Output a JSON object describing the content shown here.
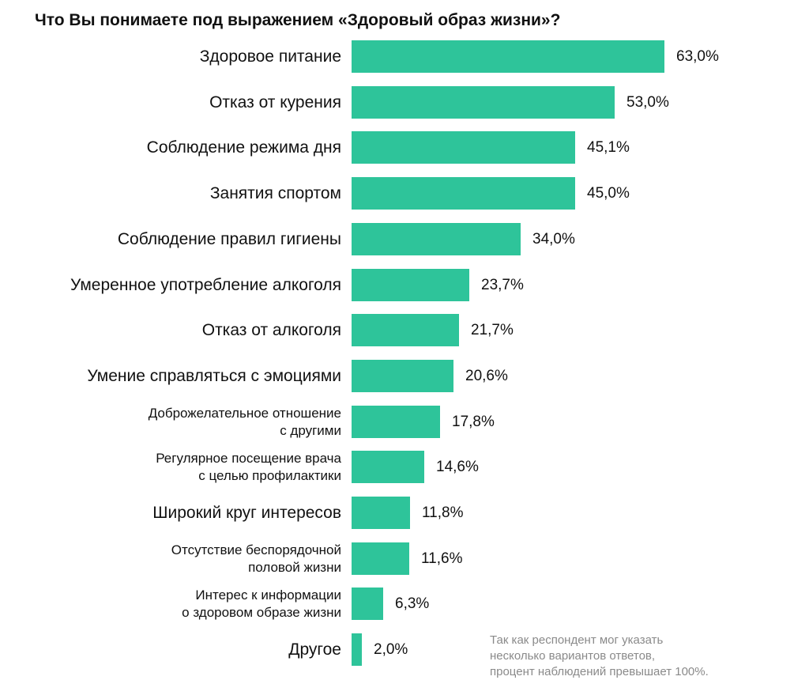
{
  "chart_data": {
    "type": "bar",
    "orientation": "horizontal",
    "title": "Что Вы понимаете под выражением «Здоровый образ жизни»?",
    "categories": [
      [
        "Здоровое питание"
      ],
      [
        "Отказ от курения"
      ],
      [
        "Соблюдение режима дня"
      ],
      [
        "Занятия спортом"
      ],
      [
        "Соблюдение правил гигиены"
      ],
      [
        "Умеренное употребление алкоголя"
      ],
      [
        "Отказ от алкоголя"
      ],
      [
        "Умение справляться с эмоциями"
      ],
      [
        "Доброжелательное отношение",
        "с другими"
      ],
      [
        "Регулярное посещение врача",
        "с целью профилактики"
      ],
      [
        "Широкий круг интересов"
      ],
      [
        "Отсутствие беспорядочной",
        "половой жизни"
      ],
      [
        "Интерес к информации",
        "о здоровом образе жизни"
      ],
      [
        "Другое"
      ]
    ],
    "values": [
      63.0,
      53.0,
      45.1,
      45.0,
      34.0,
      23.7,
      21.7,
      20.6,
      17.8,
      14.6,
      11.8,
      11.6,
      6.3,
      2.0
    ],
    "value_labels": [
      "63,0%",
      "53,0%",
      "45,1%",
      "45,0%",
      "34,0%",
      "23,7%",
      "21,7%",
      "20,6%",
      "17,8%",
      "14,6%",
      "11,8%",
      "11,6%",
      "6,3%",
      "2,0%"
    ],
    "xlim": [
      0,
      63.0
    ],
    "bar_color": "#2ec49a",
    "grid": false,
    "xlabel": "",
    "ylabel": ""
  },
  "footnote": [
    "Так как респондент мог указать",
    "несколько вариантов ответов,",
    "процент наблюдений превышает 100%."
  ]
}
